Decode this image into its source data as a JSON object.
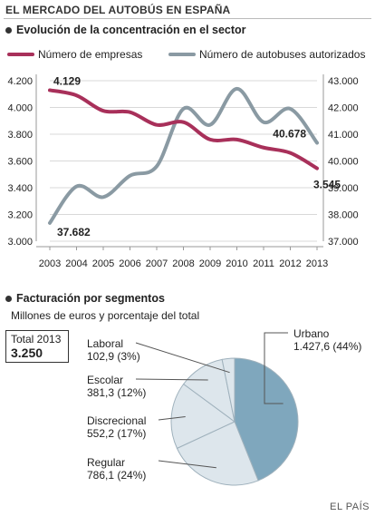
{
  "header": {
    "title": "EL MERCADO DEL AUTOBÚS EN ESPAÑA"
  },
  "colors": {
    "empresas": "#a8305a",
    "autobuses": "#8a9aa3",
    "pie_highlight": "#7fa7bd",
    "pie_other": "#dde6ec"
  },
  "chart_data": [
    {
      "type": "line",
      "title": "Evolución de la concentración en el  sector",
      "x": [
        "2003",
        "2004",
        "2005",
        "2006",
        "2007",
        "2008",
        "2009",
        "2010",
        "2011",
        "2012",
        "2013"
      ],
      "series": [
        {
          "name": "Número de empresas",
          "axis": "left",
          "values": [
            4129,
            4090,
            3975,
            3965,
            3870,
            3890,
            3760,
            3760,
            3700,
            3660,
            3545
          ]
        },
        {
          "name": "Número de autobuses autorizados",
          "axis": "right",
          "values": [
            37682,
            39050,
            38650,
            39450,
            39800,
            41950,
            41350,
            42700,
            41450,
            41950,
            40678
          ]
        }
      ],
      "ylim_left": [
        3000,
        4200
      ],
      "ylim_right": [
        37000,
        43000
      ],
      "yticks_left": [
        "3.000",
        "3.200",
        "3.400",
        "3.600",
        "3.800",
        "4.000",
        "4.200"
      ],
      "yticks_right": [
        "37.000",
        "38.000",
        "39.000",
        "40.000",
        "41.000",
        "42.000",
        "43.000"
      ],
      "annotations": [
        {
          "text": "4.129",
          "series": 0,
          "index": 0
        },
        {
          "text": "3.545",
          "series": 0,
          "index": 10
        },
        {
          "text": "37.682",
          "series": 1,
          "index": 0
        },
        {
          "text": "40.678",
          "series": 1,
          "index": 10
        }
      ]
    },
    {
      "type": "pie",
      "title": "Facturación por segmentos",
      "subtitle": "Millones de euros y porcentaje del total",
      "total_label": "Total 2013",
      "total_value": "3.250",
      "slices": [
        {
          "name": "Urbano",
          "value": 1427.6,
          "pct": 44,
          "display": "1.427,6 (44%)"
        },
        {
          "name": "Regular",
          "value": 786.1,
          "pct": 24,
          "display": "786,1 (24%)"
        },
        {
          "name": "Discrecional",
          "value": 552.2,
          "pct": 17,
          "display": "552,2 (17%)"
        },
        {
          "name": "Escolar",
          "value": 381.3,
          "pct": 12,
          "display": "381,3 (12%)"
        },
        {
          "name": "Laboral",
          "value": 102.9,
          "pct": 3,
          "display": "102,9 (3%)"
        }
      ]
    }
  ],
  "credit": "EL PAÍS"
}
